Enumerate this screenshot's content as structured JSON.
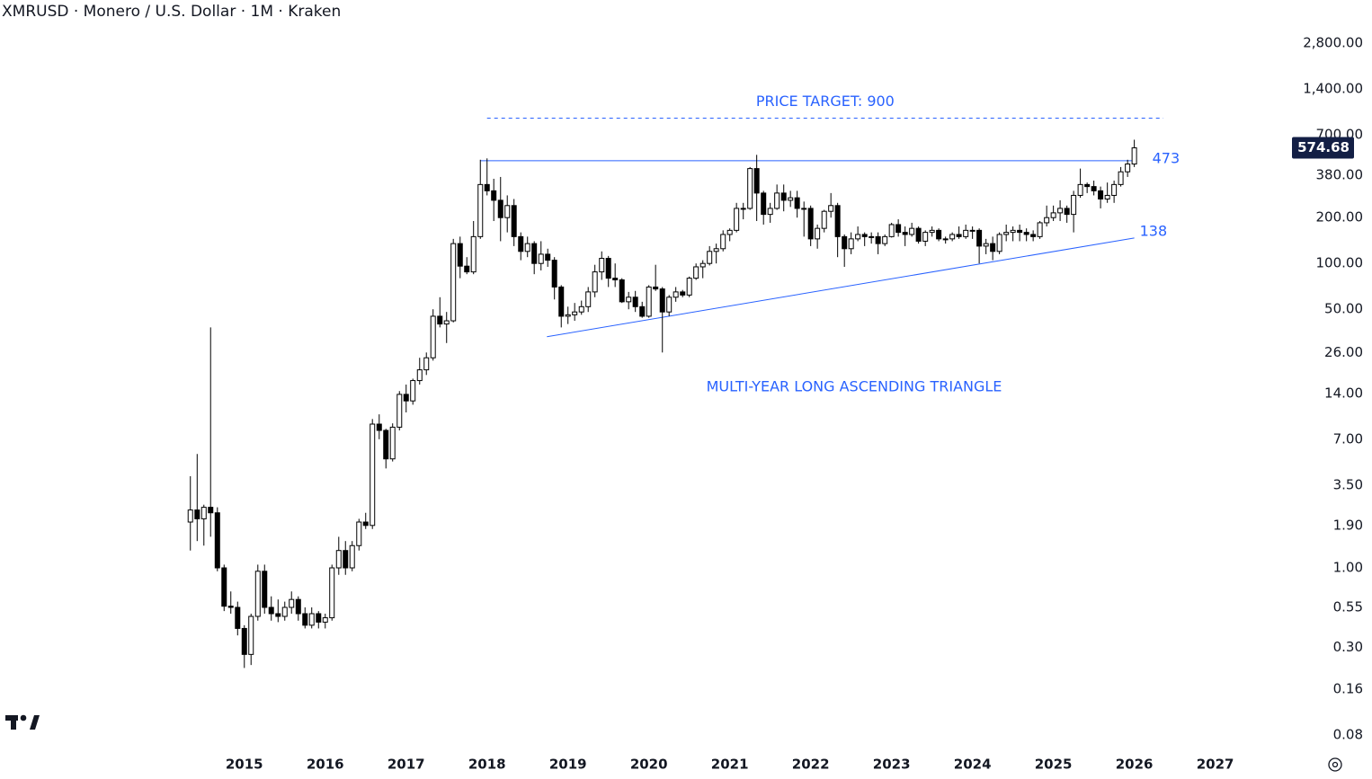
{
  "chart_data": {
    "type": "candlestick",
    "title": "XMRUSD · Monero / U.S. Dollar · 1M · Kraken",
    "log_scale": true,
    "up_color": "#ffffff",
    "down_color": "#000000",
    "annotation_color": "#2962ff",
    "xlim": [
      2011.98,
      2027.76
    ],
    "xticks": [
      2015,
      2016,
      2017,
      2018,
      2019,
      2020,
      2021,
      2022,
      2023,
      2024,
      2025,
      2026,
      2027
    ],
    "ylim": [
      0.0553,
      5380
    ],
    "yticks": [
      {
        "value": 0.08,
        "label": "0.08"
      },
      {
        "value": 0.16,
        "label": "0.16"
      },
      {
        "value": 0.3,
        "label": "0.30"
      },
      {
        "value": 0.55,
        "label": "0.55"
      },
      {
        "value": 1,
        "label": "1.00"
      },
      {
        "value": 1.9,
        "label": "1.90"
      },
      {
        "value": 3.5,
        "label": "3.50"
      },
      {
        "value": 7,
        "label": "7.00"
      },
      {
        "value": 14,
        "label": "14.00"
      },
      {
        "value": 26,
        "label": "26.00"
      },
      {
        "value": 50,
        "label": "50.00"
      },
      {
        "value": 100,
        "label": "100.00"
      },
      {
        "value": 200,
        "label": "200.00"
      },
      {
        "value": 380,
        "label": "380.00"
      },
      {
        "value": 700,
        "label": "700.00"
      },
      {
        "value": 1400,
        "label": "1,400.00"
      },
      {
        "value": 2800,
        "label": "2,800.00"
      }
    ],
    "last_price": 574.68,
    "x": [
      2014.333,
      2014.417,
      2014.5,
      2014.583,
      2014.667,
      2014.75,
      2014.833,
      2014.917,
      2015,
      2015.083,
      2015.167,
      2015.25,
      2015.333,
      2015.417,
      2015.5,
      2015.583,
      2015.667,
      2015.75,
      2015.833,
      2015.917,
      2016,
      2016.083,
      2016.167,
      2016.25,
      2016.333,
      2016.417,
      2016.5,
      2016.583,
      2016.667,
      2016.75,
      2016.833,
      2016.917,
      2017,
      2017.083,
      2017.167,
      2017.25,
      2017.333,
      2017.417,
      2017.5,
      2017.583,
      2017.667,
      2017.75,
      2017.833,
      2017.917,
      2018,
      2018.083,
      2018.167,
      2018.25,
      2018.333,
      2018.417,
      2018.5,
      2018.583,
      2018.667,
      2018.75,
      2018.833,
      2018.917,
      2019,
      2019.083,
      2019.167,
      2019.25,
      2019.333,
      2019.417,
      2019.5,
      2019.583,
      2019.667,
      2019.75,
      2019.833,
      2019.917,
      2020,
      2020.083,
      2020.167,
      2020.25,
      2020.333,
      2020.417,
      2020.5,
      2020.583,
      2020.667,
      2020.75,
      2020.833,
      2020.917,
      2021,
      2021.083,
      2021.167,
      2021.25,
      2021.333,
      2021.417,
      2021.5,
      2021.583,
      2021.667,
      2021.75,
      2021.833,
      2021.917,
      2022,
      2022.083,
      2022.167,
      2022.25,
      2022.333,
      2022.417,
      2022.5,
      2022.583,
      2022.667,
      2022.75,
      2022.833,
      2022.917,
      2023,
      2023.083,
      2023.167,
      2023.25,
      2023.333,
      2023.417,
      2023.5,
      2023.583,
      2023.667,
      2023.75,
      2023.833,
      2023.917,
      2024,
      2024.083,
      2024.167,
      2024.25,
      2024.333,
      2024.417,
      2024.5,
      2024.583,
      2024.667,
      2024.75,
      2024.833,
      2024.917,
      2025,
      2025.083,
      2025.167,
      2025.25,
      2025.333,
      2025.417,
      2025.5,
      2025.583,
      2025.667,
      2025.75,
      2025.833,
      2025.917,
      2026
    ],
    "candles": [
      [
        2.0,
        4.0,
        1.3,
        2.4
      ],
      [
        2.4,
        5.6,
        1.5,
        2.1
      ],
      [
        2.1,
        2.6,
        1.4,
        2.5
      ],
      [
        2.5,
        38,
        1.6,
        2.3
      ],
      [
        2.3,
        2.5,
        0.95,
        1.0
      ],
      [
        1.0,
        1.05,
        0.52,
        0.56
      ],
      [
        0.56,
        0.7,
        0.5,
        0.55
      ],
      [
        0.55,
        0.6,
        0.36,
        0.4
      ],
      [
        0.4,
        0.42,
        0.22,
        0.27
      ],
      [
        0.27,
        0.5,
        0.23,
        0.48
      ],
      [
        0.48,
        1.05,
        0.45,
        0.95
      ],
      [
        0.95,
        1.05,
        0.5,
        0.55
      ],
      [
        0.55,
        0.65,
        0.45,
        0.5
      ],
      [
        0.5,
        0.62,
        0.44,
        0.48
      ],
      [
        0.48,
        0.6,
        0.45,
        0.55
      ],
      [
        0.55,
        0.7,
        0.5,
        0.62
      ],
      [
        0.62,
        0.65,
        0.45,
        0.5
      ],
      [
        0.5,
        0.55,
        0.4,
        0.42
      ],
      [
        0.42,
        0.55,
        0.4,
        0.5
      ],
      [
        0.5,
        0.52,
        0.4,
        0.44
      ],
      [
        0.44,
        0.5,
        0.4,
        0.47
      ],
      [
        0.47,
        1.05,
        0.45,
        1.0
      ],
      [
        1.0,
        1.6,
        0.9,
        1.3
      ],
      [
        1.3,
        1.5,
        0.9,
        1.0
      ],
      [
        1.0,
        1.5,
        0.95,
        1.4
      ],
      [
        1.4,
        2.1,
        1.3,
        2.0
      ],
      [
        2.0,
        2.3,
        1.8,
        1.9
      ],
      [
        1.9,
        9.5,
        1.8,
        8.8
      ],
      [
        8.8,
        10.2,
        7.0,
        8.0
      ],
      [
        8.0,
        8.2,
        4.5,
        5.2
      ],
      [
        5.2,
        8.9,
        5.0,
        8.4
      ],
      [
        8.4,
        14.5,
        8.0,
        13.8
      ],
      [
        13.8,
        16,
        10.5,
        12.5
      ],
      [
        12.5,
        17.5,
        11.8,
        17
      ],
      [
        17,
        24,
        16,
        20
      ],
      [
        20,
        26,
        18.5,
        24
      ],
      [
        24,
        50,
        23,
        45
      ],
      [
        45,
        60,
        38,
        40
      ],
      [
        40,
        48,
        30,
        42
      ],
      [
        42,
        145,
        41,
        135
      ],
      [
        135,
        150,
        80,
        96
      ],
      [
        96,
        110,
        85,
        88
      ],
      [
        88,
        190,
        85,
        150
      ],
      [
        150,
        480,
        145,
        330
      ],
      [
        330,
        490,
        280,
        300
      ],
      [
        300,
        360,
        190,
        260
      ],
      [
        260,
        370,
        140,
        200
      ],
      [
        200,
        280,
        160,
        240
      ],
      [
        240,
        265,
        130,
        150
      ],
      [
        150,
        160,
        105,
        120
      ],
      [
        120,
        150,
        110,
        135
      ],
      [
        135,
        140,
        85,
        100
      ],
      [
        100,
        140,
        90,
        115
      ],
      [
        115,
        125,
        95,
        105
      ],
      [
        105,
        110,
        58,
        70
      ],
      [
        70,
        72,
        38,
        45
      ],
      [
        45,
        52,
        40,
        46
      ],
      [
        46,
        55,
        42,
        48
      ],
      [
        48,
        57,
        46,
        52
      ],
      [
        52,
        70,
        48,
        65
      ],
      [
        65,
        98,
        60,
        88
      ],
      [
        88,
        120,
        78,
        108
      ],
      [
        108,
        112,
        70,
        80
      ],
      [
        80,
        100,
        70,
        78
      ],
      [
        78,
        80,
        55,
        56
      ],
      [
        56,
        65,
        50,
        60
      ],
      [
        60,
        66,
        48,
        52
      ],
      [
        52,
        56,
        44,
        45
      ],
      [
        45,
        72,
        44,
        70
      ],
      [
        70,
        98,
        66,
        68
      ],
      [
        68,
        70,
        26,
        48
      ],
      [
        48,
        62,
        45,
        60
      ],
      [
        60,
        70,
        56,
        65
      ],
      [
        65,
        67,
        60,
        62
      ],
      [
        62,
        82,
        60,
        80
      ],
      [
        80,
        100,
        78,
        95
      ],
      [
        95,
        105,
        80,
        100
      ],
      [
        100,
        130,
        97,
        120
      ],
      [
        120,
        135,
        100,
        125
      ],
      [
        125,
        165,
        120,
        155
      ],
      [
        155,
        170,
        140,
        165
      ],
      [
        165,
        250,
        160,
        230
      ],
      [
        230,
        250,
        195,
        230
      ],
      [
        230,
        430,
        225,
        420
      ],
      [
        420,
        517,
        190,
        290
      ],
      [
        290,
        300,
        180,
        210
      ],
      [
        210,
        250,
        185,
        230
      ],
      [
        230,
        330,
        225,
        290
      ],
      [
        290,
        330,
        220,
        260
      ],
      [
        260,
        300,
        235,
        270
      ],
      [
        270,
        300,
        200,
        230
      ],
      [
        230,
        255,
        150,
        230
      ],
      [
        230,
        240,
        130,
        145
      ],
      [
        145,
        180,
        125,
        170
      ],
      [
        170,
        225,
        160,
        220
      ],
      [
        220,
        290,
        200,
        240
      ],
      [
        240,
        250,
        110,
        150
      ],
      [
        150,
        155,
        95,
        125
      ],
      [
        125,
        160,
        115,
        145
      ],
      [
        145,
        175,
        140,
        155
      ],
      [
        155,
        160,
        130,
        150
      ],
      [
        150,
        160,
        135,
        150
      ],
      [
        150,
        160,
        115,
        135
      ],
      [
        135,
        155,
        130,
        150
      ],
      [
        150,
        185,
        148,
        180
      ],
      [
        180,
        195,
        150,
        160
      ],
      [
        160,
        175,
        130,
        155
      ],
      [
        155,
        185,
        150,
        170
      ],
      [
        170,
        175,
        135,
        140
      ],
      [
        140,
        165,
        130,
        160
      ],
      [
        160,
        175,
        150,
        165
      ],
      [
        165,
        170,
        140,
        145
      ],
      [
        145,
        150,
        135,
        145
      ],
      [
        145,
        160,
        140,
        155
      ],
      [
        155,
        175,
        145,
        150
      ],
      [
        150,
        180,
        145,
        165
      ],
      [
        165,
        175,
        145,
        165
      ],
      [
        165,
        170,
        100,
        130
      ],
      [
        130,
        145,
        115,
        135
      ],
      [
        135,
        150,
        105,
        120
      ],
      [
        120,
        160,
        115,
        155
      ],
      [
        155,
        180,
        140,
        160
      ],
      [
        160,
        175,
        140,
        165
      ],
      [
        165,
        180,
        140,
        160
      ],
      [
        160,
        170,
        140,
        155
      ],
      [
        155,
        165,
        140,
        150
      ],
      [
        150,
        190,
        145,
        185
      ],
      [
        185,
        240,
        175,
        200
      ],
      [
        200,
        240,
        190,
        215
      ],
      [
        215,
        260,
        190,
        230
      ],
      [
        230,
        240,
        185,
        210
      ],
      [
        210,
        300,
        160,
        280
      ],
      [
        280,
        420,
        270,
        330
      ],
      [
        330,
        340,
        290,
        320
      ],
      [
        320,
        350,
        280,
        300
      ],
      [
        300,
        320,
        230,
        265
      ],
      [
        265,
        340,
        250,
        280
      ],
      [
        280,
        350,
        250,
        330
      ],
      [
        330,
        430,
        320,
        400
      ],
      [
        400,
        480,
        370,
        450
      ],
      [
        450,
        650,
        430,
        574.68
      ]
    ],
    "resistance": {
      "value": 473,
      "label": "473",
      "x": [
        2017.92,
        2026.0
      ]
    },
    "target": {
      "value": 900,
      "label": "PRICE TARGET: 900",
      "x": [
        2018.0,
        2026.36
      ]
    },
    "trendline": {
      "label": "138",
      "x": [
        2018.74,
        2026.0
      ],
      "y": [
        33,
        147
      ]
    },
    "pattern_label": "MULTI-YEAR LONG ASCENDING TRIANGLE"
  }
}
